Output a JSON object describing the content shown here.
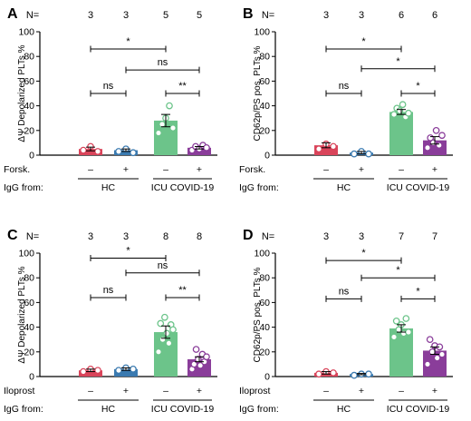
{
  "chart_data": [
    {
      "type": "bar",
      "panel": "A",
      "ylabel": "ΔΨ Depolarized PLTs %",
      "ylim": [
        0,
        100
      ],
      "yticks": [
        0,
        20,
        40,
        60,
        80,
        100
      ],
      "n_label": "N=",
      "n": [
        "3",
        "3",
        "5",
        "5"
      ],
      "treatment_label": "Forsk.",
      "treatment_signs": [
        "–",
        "+",
        "–",
        "+"
      ],
      "igg_label": "IgG from:",
      "groups": [
        "HC",
        "ICU COVID-19"
      ],
      "bar_colors": [
        "#d9445a",
        "#3a7ab0",
        "#6cc48a",
        "#8a3d9a"
      ],
      "values": [
        5,
        4,
        28,
        6
      ],
      "sem": [
        1.5,
        1,
        5,
        1
      ],
      "points": [
        [
          4,
          7,
          3
        ],
        [
          3,
          5,
          2
        ],
        [
          18,
          25,
          30,
          40,
          22
        ],
        [
          4,
          7,
          5,
          8,
          6
        ]
      ],
      "comparisons": [
        {
          "from": 0,
          "to": 2,
          "label": "*",
          "y": 86
        },
        {
          "from": 1,
          "to": 3,
          "label": "ns",
          "y": 69
        },
        {
          "from": 0,
          "to": 1,
          "label": "ns",
          "y": 50
        },
        {
          "from": 2,
          "to": 3,
          "label": "**",
          "y": 50
        }
      ]
    },
    {
      "type": "bar",
      "panel": "B",
      "ylabel": "CD62p/PS pos. PLTs %",
      "ylim": [
        0,
        100
      ],
      "yticks": [
        0,
        20,
        40,
        60,
        80,
        100
      ],
      "n_label": "N=",
      "n": [
        "3",
        "3",
        "6",
        "6"
      ],
      "treatment_label": "Forsk.",
      "treatment_signs": [
        "–",
        "+",
        "–",
        "+"
      ],
      "igg_label": "IgG from:",
      "groups": [
        "HC",
        "ICU COVID-19"
      ],
      "bar_colors": [
        "#d9445a",
        "#3a7ab0",
        "#6cc48a",
        "#8a3d9a"
      ],
      "values": [
        8,
        2,
        35,
        12
      ],
      "sem": [
        2,
        1,
        2,
        3
      ],
      "points": [
        [
          5,
          9,
          7
        ],
        [
          1,
          3,
          1
        ],
        [
          33,
          38,
          36,
          41,
          31,
          34
        ],
        [
          6,
          14,
          10,
          20,
          8,
          16
        ]
      ],
      "comparisons": [
        {
          "from": 0,
          "to": 2,
          "label": "*",
          "y": 86
        },
        {
          "from": 1,
          "to": 3,
          "label": "*",
          "y": 70
        },
        {
          "from": 0,
          "to": 1,
          "label": "ns",
          "y": 50
        },
        {
          "from": 2,
          "to": 3,
          "label": "*",
          "y": 50
        }
      ]
    },
    {
      "type": "bar",
      "panel": "C",
      "ylabel": "ΔΨ Depolarized PLTs %",
      "ylim": [
        0,
        100
      ],
      "yticks": [
        0,
        20,
        40,
        60,
        80,
        100
      ],
      "n_label": "N=",
      "n": [
        "3",
        "3",
        "8",
        "8"
      ],
      "treatment_label": "Iloprost",
      "treatment_signs": [
        "–",
        "+",
        "–",
        "+"
      ],
      "igg_label": "IgG from:",
      "groups": [
        "HC",
        "ICU COVID-19"
      ],
      "bar_colors": [
        "#d9445a",
        "#3a7ab0",
        "#6cc48a",
        "#8a3d9a"
      ],
      "values": [
        5,
        6,
        36,
        14
      ],
      "sem": [
        1,
        1,
        5,
        2
      ],
      "points": [
        [
          4,
          6,
          5
        ],
        [
          5,
          7,
          6
        ],
        [
          20,
          43,
          30,
          48,
          35,
          27,
          42,
          38
        ],
        [
          6,
          10,
          22,
          14,
          9,
          18,
          12,
          16
        ]
      ],
      "comparisons": [
        {
          "from": 0,
          "to": 2,
          "label": "*",
          "y": 96
        },
        {
          "from": 1,
          "to": 3,
          "label": "ns",
          "y": 84
        },
        {
          "from": 0,
          "to": 1,
          "label": "ns",
          "y": 64
        },
        {
          "from": 2,
          "to": 3,
          "label": "**",
          "y": 64
        }
      ]
    },
    {
      "type": "bar",
      "panel": "D",
      "ylabel": "CD62p/PS pos. PLTs %",
      "ylim": [
        0,
        100
      ],
      "yticks": [
        0,
        20,
        40,
        60,
        80,
        100
      ],
      "n_label": "N=",
      "n": [
        "3",
        "3",
        "7",
        "7"
      ],
      "treatment_label": "Iloprost",
      "treatment_signs": [
        "–",
        "+",
        "–",
        "+"
      ],
      "igg_label": "IgG from:",
      "groups": [
        "HC",
        "ICU COVID-19"
      ],
      "bar_colors": [
        "#d9445a",
        "#3a7ab0",
        "#6cc48a",
        "#8a3d9a"
      ],
      "values": [
        3,
        2,
        39,
        21
      ],
      "sem": [
        1,
        0.5,
        3,
        3
      ],
      "points": [
        [
          2,
          4,
          3
        ],
        [
          1,
          2,
          2
        ],
        [
          32,
          45,
          38,
          42,
          35,
          47,
          36
        ],
        [
          10,
          30,
          20,
          25,
          15,
          24,
          18
        ]
      ],
      "comparisons": [
        {
          "from": 0,
          "to": 2,
          "label": "*",
          "y": 94
        },
        {
          "from": 1,
          "to": 3,
          "label": "*",
          "y": 80
        },
        {
          "from": 0,
          "to": 1,
          "label": "ns",
          "y": 63
        },
        {
          "from": 2,
          "to": 3,
          "label": "*",
          "y": 63
        }
      ]
    }
  ]
}
